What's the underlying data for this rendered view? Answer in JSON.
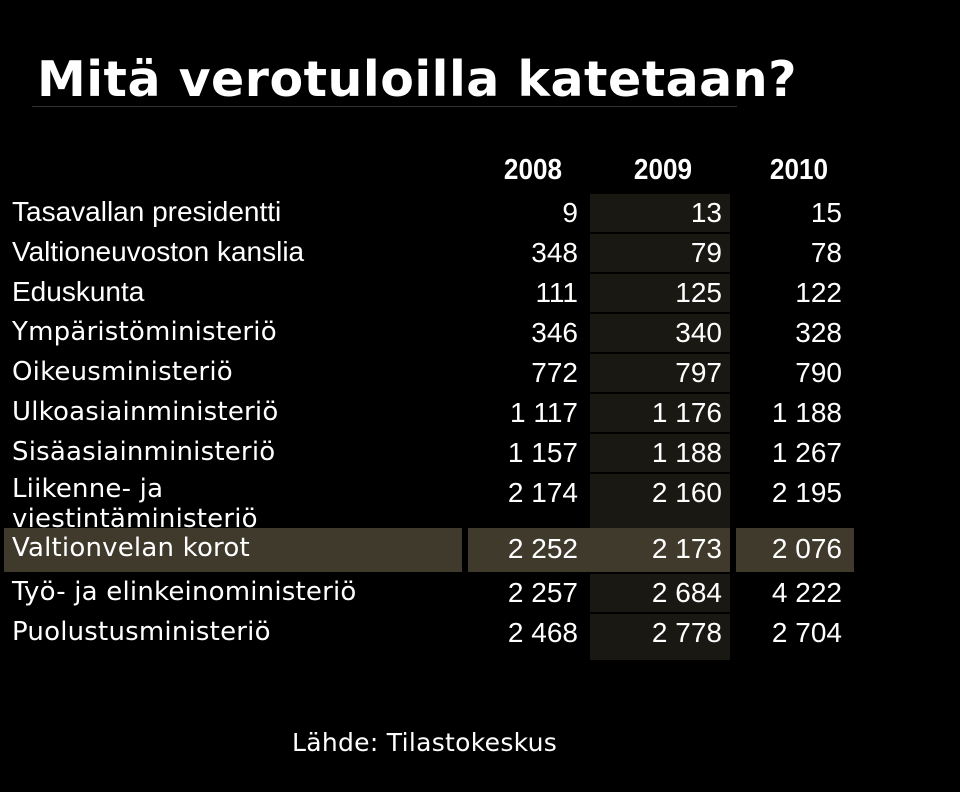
{
  "title": "Mitä verotuloilla katetaan?",
  "source": "Lähde: Tilastokeskus",
  "colors": {
    "background": "#000000",
    "col2009_bg": "#191813",
    "highlight_bg": "#3f3a2c",
    "text": "#ffffff"
  },
  "table": {
    "years": [
      "2008",
      "2009",
      "2010"
    ],
    "rows": [
      {
        "label": "Tasavallan presidentti",
        "v2008": "9",
        "v2009": "13",
        "v2010": "15"
      },
      {
        "label": "Valtioneuvoston kanslia",
        "v2008": "348",
        "v2009": "79",
        "v2010": "78"
      },
      {
        "label": "Eduskunta",
        "v2008": "111",
        "v2009": "125",
        "v2010": "122"
      },
      {
        "label": "Ympäristöministeriö",
        "v2008": "346",
        "v2009": "340",
        "v2010": "328"
      },
      {
        "label": "Oikeusministeriö",
        "v2008": "772",
        "v2009": "797",
        "v2010": "790"
      },
      {
        "label": "Ulkoasiainministeriö",
        "v2008": "1 117",
        "v2009": "1 176",
        "v2010": "1 188"
      },
      {
        "label": "Sisäasiainministeriö",
        "v2008": "1 157",
        "v2009": "1 188",
        "v2010": "1 267"
      },
      {
        "label": "Liikenne- ja viestintäministeriö",
        "v2008": "2 174",
        "v2009": "2 160",
        "v2010": "2 195"
      },
      {
        "label": "Valtionvelan korot",
        "v2008": "2 252",
        "v2009": "2 173",
        "v2010": "2 076"
      },
      {
        "label": "Työ- ja elinkeinoministeriö",
        "v2008": "2 257",
        "v2009": "2 684",
        "v2010": "4 222"
      },
      {
        "label": "Puolustusministeriö",
        "v2008": "2 468",
        "v2009": "2 778",
        "v2010": "2 704"
      }
    ]
  }
}
